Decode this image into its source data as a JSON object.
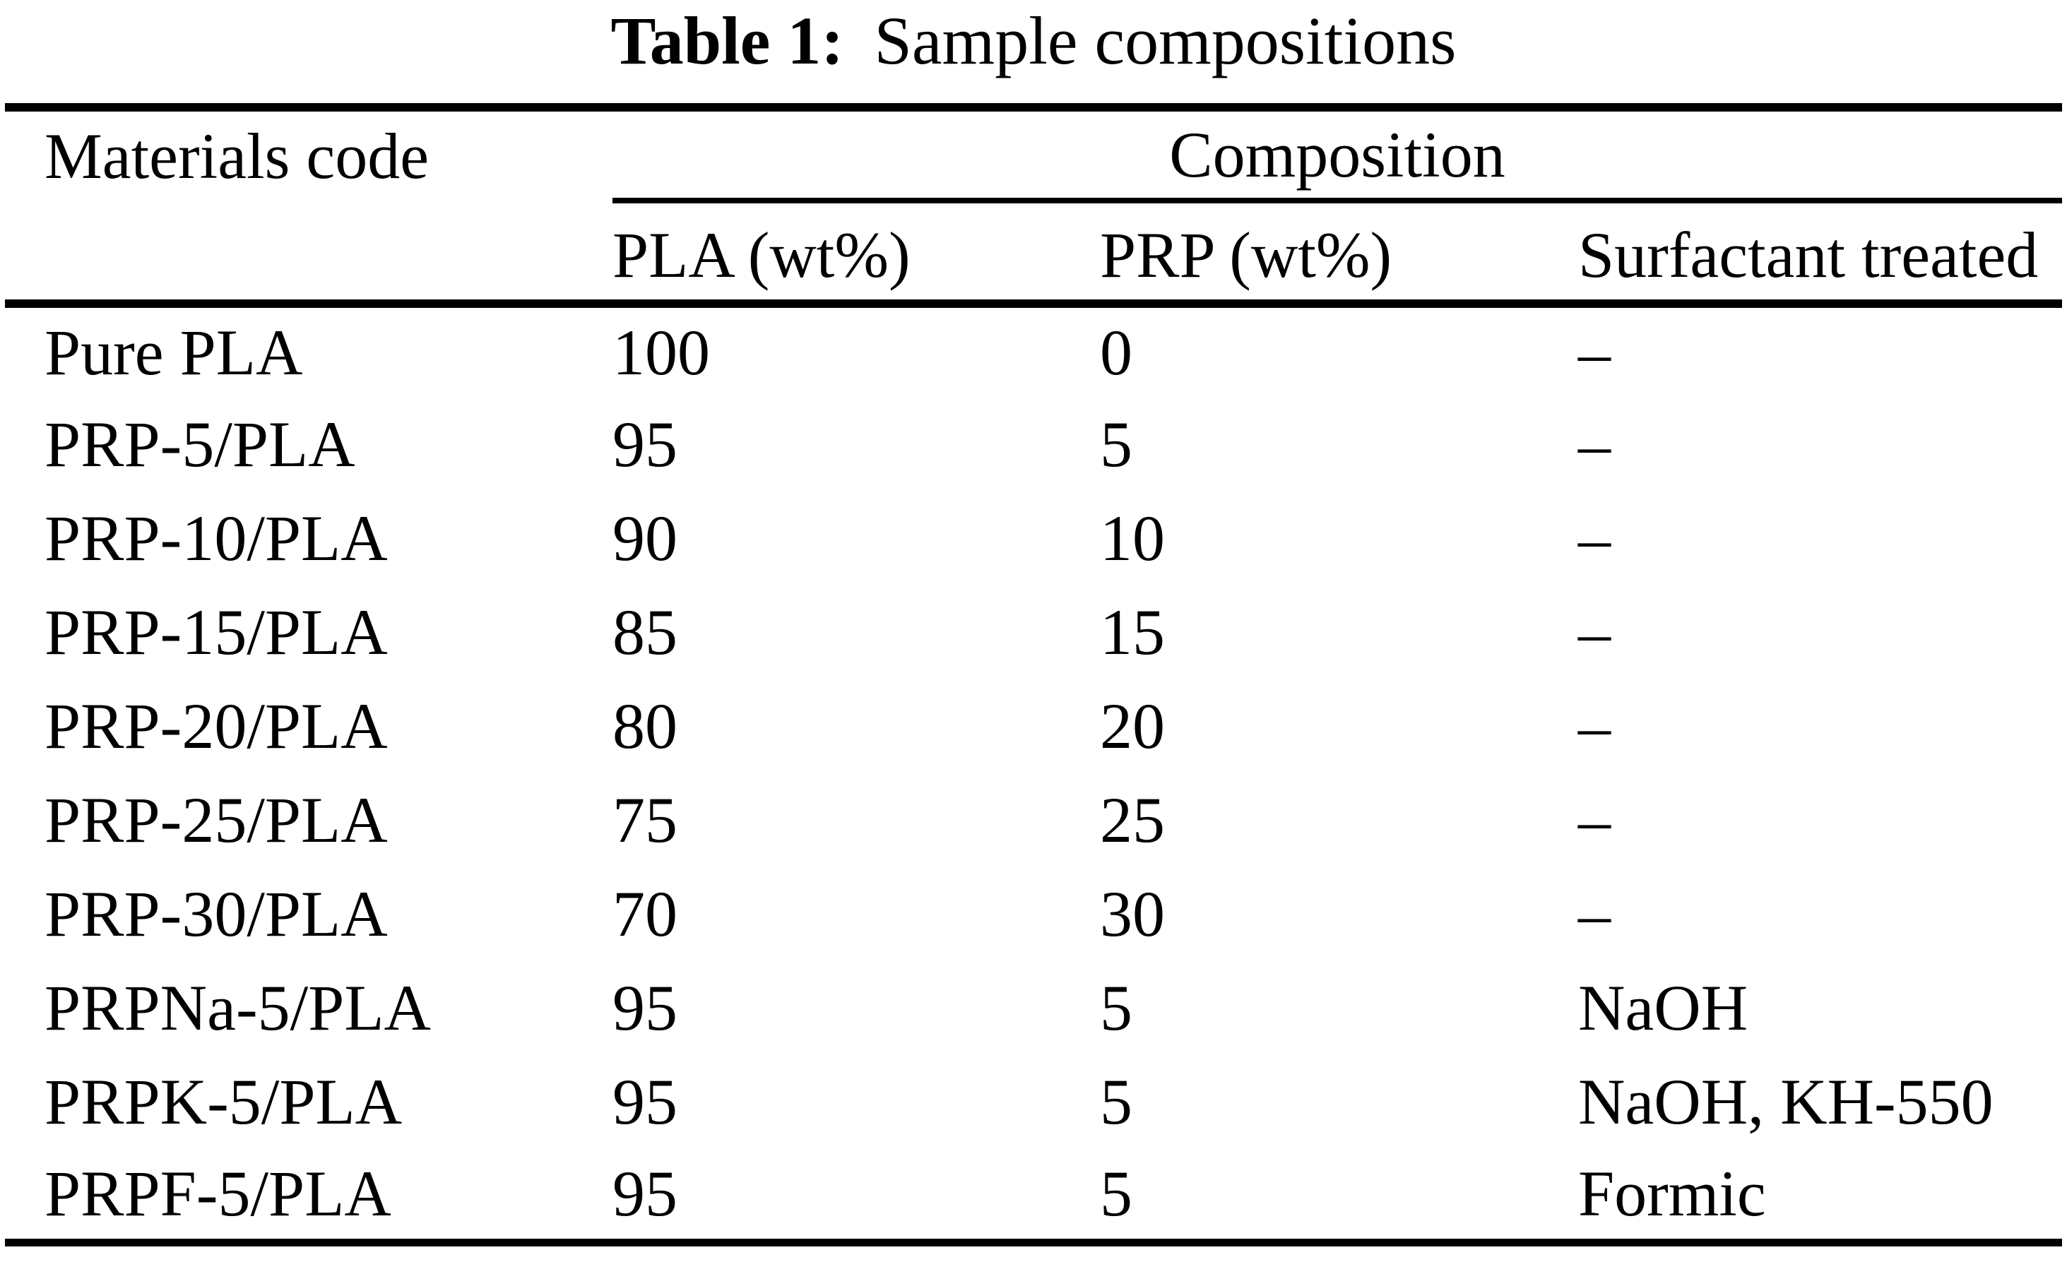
{
  "title": {
    "label": "Table 1:",
    "text": "Sample compositions"
  },
  "table": {
    "header": {
      "materials_code": "Materials code",
      "composition_group": "Composition",
      "columns": [
        "PLA (wt%)",
        "PRP (wt%)",
        "Surfactant treated"
      ]
    },
    "rows": [
      {
        "code": "Pure PLA",
        "pla": "100",
        "prp": "0",
        "surfactant": "–"
      },
      {
        "code": "PRP-5/PLA",
        "pla": "95",
        "prp": "5",
        "surfactant": "–"
      },
      {
        "code": "PRP-10/PLA",
        "pla": "90",
        "prp": "10",
        "surfactant": "–"
      },
      {
        "code": "PRP-15/PLA",
        "pla": "85",
        "prp": "15",
        "surfactant": "–"
      },
      {
        "code": "PRP-20/PLA",
        "pla": "80",
        "prp": "20",
        "surfactant": "–"
      },
      {
        "code": "PRP-25/PLA",
        "pla": "75",
        "prp": "25",
        "surfactant": "–"
      },
      {
        "code": "PRP-30/PLA",
        "pla": "70",
        "prp": "30",
        "surfactant": "–"
      },
      {
        "code": "PRPNa-5/PLA",
        "pla": "95",
        "prp": "5",
        "surfactant": "NaOH"
      },
      {
        "code": "PRPK-5/PLA",
        "pla": "95",
        "prp": "5",
        "surfactant": "NaOH, KH-550"
      },
      {
        "code": "PRPF-5/PLA",
        "pla": "95",
        "prp": "5",
        "surfactant": "Formic"
      }
    ]
  },
  "colors": {
    "text": "#000000",
    "background": "#ffffff",
    "rule": "#000000"
  }
}
